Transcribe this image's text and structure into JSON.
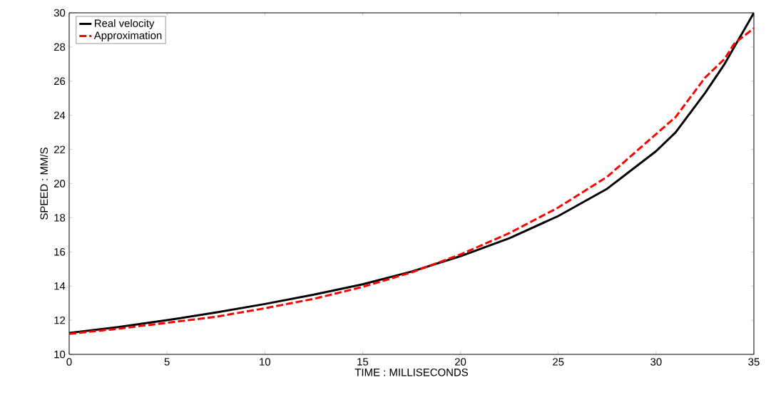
{
  "chart_data": {
    "type": "line",
    "xlabel": "TIME : MILLISECONDS",
    "ylabel": "SPEED : MM/S",
    "xlim": [
      0,
      35
    ],
    "ylim": [
      10,
      30
    ],
    "xticks": [
      0,
      5,
      10,
      15,
      20,
      25,
      30,
      35
    ],
    "yticks": [
      10,
      12,
      14,
      16,
      18,
      20,
      22,
      24,
      26,
      28,
      30
    ],
    "grid": false,
    "legend": "top left",
    "marker": "none",
    "series": [
      {
        "name": "Real velocity",
        "color": "#000000",
        "line_style": "solid",
        "x": [
          0,
          2.5,
          5,
          7.5,
          10,
          12.5,
          15,
          17.5,
          20,
          22.5,
          25,
          27.5,
          30,
          31,
          32.5,
          33.5,
          34,
          35
        ],
        "values": [
          11.25,
          11.6,
          12.0,
          12.45,
          12.95,
          13.5,
          14.1,
          14.85,
          15.75,
          16.8,
          18.1,
          19.7,
          21.9,
          23.0,
          25.3,
          27.0,
          28.0,
          30.0
        ]
      },
      {
        "name": "Approximation",
        "color": "#ff0000",
        "line_style": "dashed",
        "x": [
          0,
          2.5,
          5,
          7.5,
          10,
          12.5,
          15,
          17.5,
          20,
          22.5,
          25,
          27.5,
          30,
          31,
          32.5,
          33.5,
          34,
          35
        ],
        "values": [
          11.2,
          11.5,
          11.85,
          12.2,
          12.7,
          13.25,
          13.95,
          14.8,
          15.85,
          17.1,
          18.6,
          20.4,
          22.9,
          23.9,
          26.2,
          27.3,
          28.2,
          29.1
        ]
      }
    ]
  }
}
